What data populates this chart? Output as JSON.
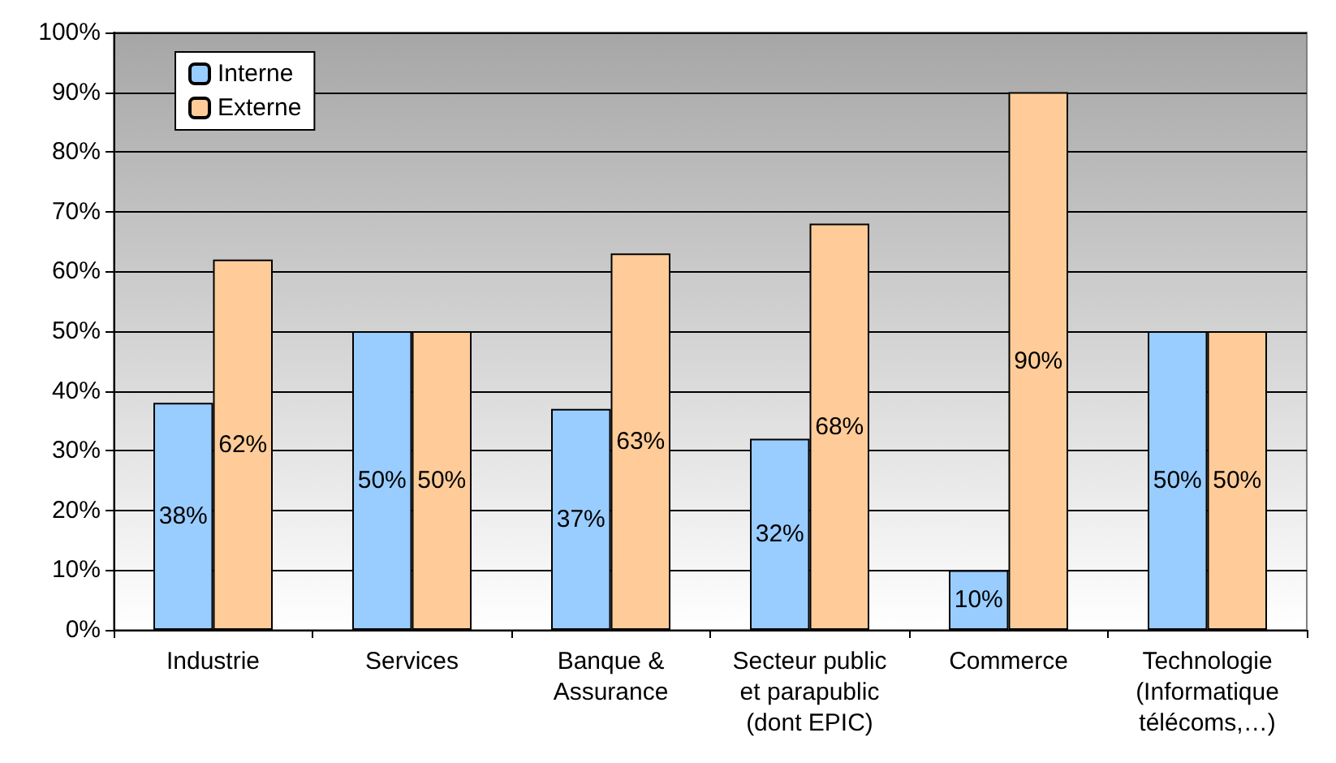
{
  "chart_data": {
    "type": "bar",
    "categories": [
      "Industrie",
      "Services",
      "Banque &\nAssurance",
      "Secteur public\net parapublic\n(dont EPIC)",
      "Commerce",
      "Technologie\n(Informatique\ntélécoms,…)"
    ],
    "series": [
      {
        "name": "Interne",
        "color": "#99ccff",
        "values": [
          38,
          50,
          37,
          32,
          10,
          50
        ],
        "value_labels": [
          "38%",
          "50%",
          "37%",
          "32%",
          "10%",
          "50%"
        ]
      },
      {
        "name": "Externe",
        "color": "#ffcc99",
        "values": [
          62,
          50,
          63,
          68,
          90,
          50
        ],
        "value_labels": [
          "62%",
          "50%",
          "63%",
          "68%",
          "90%",
          "50%"
        ]
      }
    ],
    "ylim": [
      0,
      100
    ],
    "yticks": [
      {
        "value": 0,
        "label": "0%"
      },
      {
        "value": 10,
        "label": "10%"
      },
      {
        "value": 20,
        "label": "20%"
      },
      {
        "value": 30,
        "label": "30%"
      },
      {
        "value": 40,
        "label": "40%"
      },
      {
        "value": 50,
        "label": "50%"
      },
      {
        "value": 60,
        "label": "60%"
      },
      {
        "value": 70,
        "label": "70%"
      },
      {
        "value": 80,
        "label": "80%"
      },
      {
        "value": 90,
        "label": "90%"
      },
      {
        "value": 100,
        "label": "100%"
      }
    ],
    "grid": "y",
    "legend": "top left"
  }
}
